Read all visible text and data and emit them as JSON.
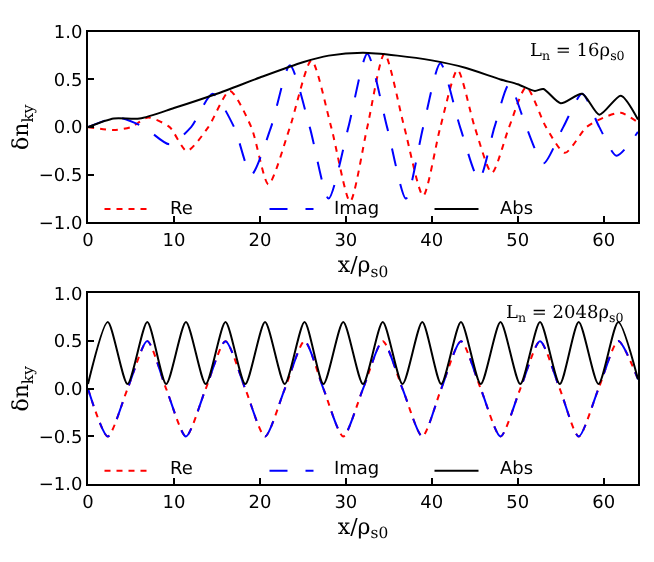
{
  "chart_data": [
    {
      "type": "line",
      "xlabel": "x/ρ$_{s0}$",
      "ylabel": "δn$_{ky}$",
      "annotations": [
        "L$_{n}$ = 16ρ$_{s0}$"
      ],
      "xlim": [
        0,
        64
      ],
      "ylim": [
        -1.0,
        1.0
      ],
      "xticks": [
        0,
        10,
        20,
        30,
        40,
        50,
        60
      ],
      "yticks": [
        {
          "value": -1.0,
          "label": "−1.0"
        },
        {
          "value": -0.5,
          "label": "−0.5"
        },
        {
          "value": 0.0,
          "label": "0.0"
        },
        {
          "value": 0.5,
          "label": "0.5"
        },
        {
          "value": 1.0,
          "label": "1.0"
        }
      ],
      "legend": "bottom",
      "series": [
        {
          "name": "Re",
          "color": "#ff0000",
          "line_style": "dotted",
          "x": [
            0,
            3,
            5,
            7,
            9.5,
            11.5,
            14,
            16.5,
            19,
            21,
            23.5,
            26,
            28.3,
            30.5,
            32.5,
            34.5,
            36.8,
            39,
            41,
            43,
            45,
            47,
            49,
            51,
            53.3,
            55.5,
            58,
            60,
            62,
            64
          ],
          "values": [
            0,
            -0.03,
            0,
            0.1,
            0,
            -0.25,
            0,
            0.38,
            0,
            -0.6,
            0,
            0.7,
            0,
            -0.78,
            0,
            0.77,
            0,
            -0.72,
            0,
            0.6,
            0,
            -0.48,
            0,
            0.42,
            0,
            -0.27,
            0,
            0.1,
            0.15,
            0.05
          ]
        },
        {
          "name": "Imag",
          "color": "#0000ff",
          "line_style": "dashed",
          "x": [
            0,
            3.5,
            6.5,
            9.5,
            12,
            14.5,
            17,
            19,
            21.3,
            23.5,
            25.8,
            28,
            30.3,
            32.5,
            34.8,
            37,
            39,
            41,
            43.3,
            45.5,
            47.3,
            49,
            51,
            53,
            55.3,
            57.5,
            59.5,
            61.5,
            64
          ],
          "values": [
            0,
            0.1,
            0,
            -0.18,
            0,
            0.35,
            0,
            -0.5,
            0,
            0.65,
            0,
            -0.75,
            0,
            0.77,
            0,
            -0.75,
            0,
            0.67,
            0,
            -0.55,
            0,
            0.45,
            0,
            -0.38,
            0,
            0.35,
            0,
            -0.3,
            -0.05
          ]
        },
        {
          "name": "Abs",
          "color": "#000000",
          "line_style": "solid",
          "x": [
            0,
            3,
            6,
            10,
            15,
            20,
            25,
            28,
            32,
            36,
            40,
            44,
            48,
            50,
            52,
            53,
            55,
            57.5,
            59.5,
            62,
            64
          ],
          "values": [
            0,
            0.09,
            0.09,
            0.2,
            0.35,
            0.52,
            0.68,
            0.75,
            0.78,
            0.75,
            0.7,
            0.62,
            0.5,
            0.45,
            0.38,
            0.4,
            0.25,
            0.35,
            0.13,
            0.33,
            0.08
          ]
        }
      ]
    },
    {
      "type": "line",
      "xlabel": "x/ρ$_{s0}$",
      "ylabel": "δn$_{ky}$",
      "annotations": [
        "L$_{n}$ = 2048ρ$_{s0}$"
      ],
      "xlim": [
        0,
        64
      ],
      "ylim": [
        -1.0,
        1.0
      ],
      "xticks": [
        0,
        10,
        20,
        30,
        40,
        50,
        60
      ],
      "yticks": [
        {
          "value": -1.0,
          "label": "−1.0"
        },
        {
          "value": -0.5,
          "label": "−0.5"
        },
        {
          "value": 0.0,
          "label": "0.0"
        },
        {
          "value": 0.5,
          "label": "0.5"
        },
        {
          "value": 1.0,
          "label": "1.0"
        }
      ],
      "legend": "bottom",
      "series": [
        {
          "name": "Re",
          "color": "#ff0000",
          "line_style": "dotted",
          "x": [
            0,
            2.3,
            4.6,
            6.9,
            9.1,
            11.4,
            13.7,
            16.0,
            18.3,
            20.6,
            22.9,
            25.2,
            27.4,
            29.7,
            32.0,
            34.3,
            36.6,
            38.9,
            41.1,
            43.4,
            45.7,
            48.0,
            50.3,
            52.6,
            54.9,
            57.1,
            59.4,
            61.7,
            64
          ],
          "values": [
            0,
            -0.5,
            0,
            0.5,
            0,
            -0.5,
            0,
            0.5,
            0,
            -0.5,
            0,
            0.5,
            0,
            -0.5,
            0,
            0.5,
            0,
            -0.5,
            0,
            0.5,
            0,
            -0.5,
            0,
            0.5,
            0,
            -0.5,
            0,
            0.5,
            0.1
          ]
        },
        {
          "name": "Imag",
          "color": "#0000ff",
          "line_style": "dashed",
          "x": [
            0,
            2.3,
            4.6,
            6.9,
            9.1,
            11.4,
            13.7,
            16.0,
            18.3,
            20.6,
            22.9,
            25.2,
            27.4,
            29.7,
            32.0,
            34.3,
            36.6,
            38.9,
            41.1,
            43.4,
            45.7,
            48.0,
            50.3,
            52.6,
            54.9,
            57.1,
            59.4,
            61.7,
            64
          ],
          "values": [
            0,
            -0.5,
            0,
            0.5,
            0,
            -0.5,
            0,
            0.5,
            0,
            -0.5,
            0,
            0.5,
            0,
            -0.5,
            0,
            0.5,
            0,
            -0.5,
            0,
            0.5,
            0,
            -0.5,
            0,
            0.5,
            0,
            -0.5,
            0,
            0.5,
            0.1
          ]
        },
        {
          "name": "Abs",
          "color": "#000000",
          "line_style": "solid",
          "x": [
            0,
            2.3,
            4.6,
            6.9,
            9.1,
            11.4,
            13.7,
            16.0,
            18.3,
            20.6,
            22.9,
            25.2,
            27.4,
            29.7,
            32.0,
            34.3,
            36.6,
            38.9,
            41.1,
            43.4,
            45.7,
            48.0,
            50.3,
            52.6,
            54.9,
            57.1,
            59.4,
            61.7,
            64
          ],
          "values": [
            0.05,
            0.7,
            0.05,
            0.7,
            0.05,
            0.7,
            0.05,
            0.7,
            0.05,
            0.7,
            0.05,
            0.7,
            0.05,
            0.7,
            0.05,
            0.7,
            0.05,
            0.7,
            0.05,
            0.7,
            0.05,
            0.7,
            0.05,
            0.7,
            0.05,
            0.7,
            0.05,
            0.7,
            0.1
          ]
        }
      ]
    }
  ]
}
